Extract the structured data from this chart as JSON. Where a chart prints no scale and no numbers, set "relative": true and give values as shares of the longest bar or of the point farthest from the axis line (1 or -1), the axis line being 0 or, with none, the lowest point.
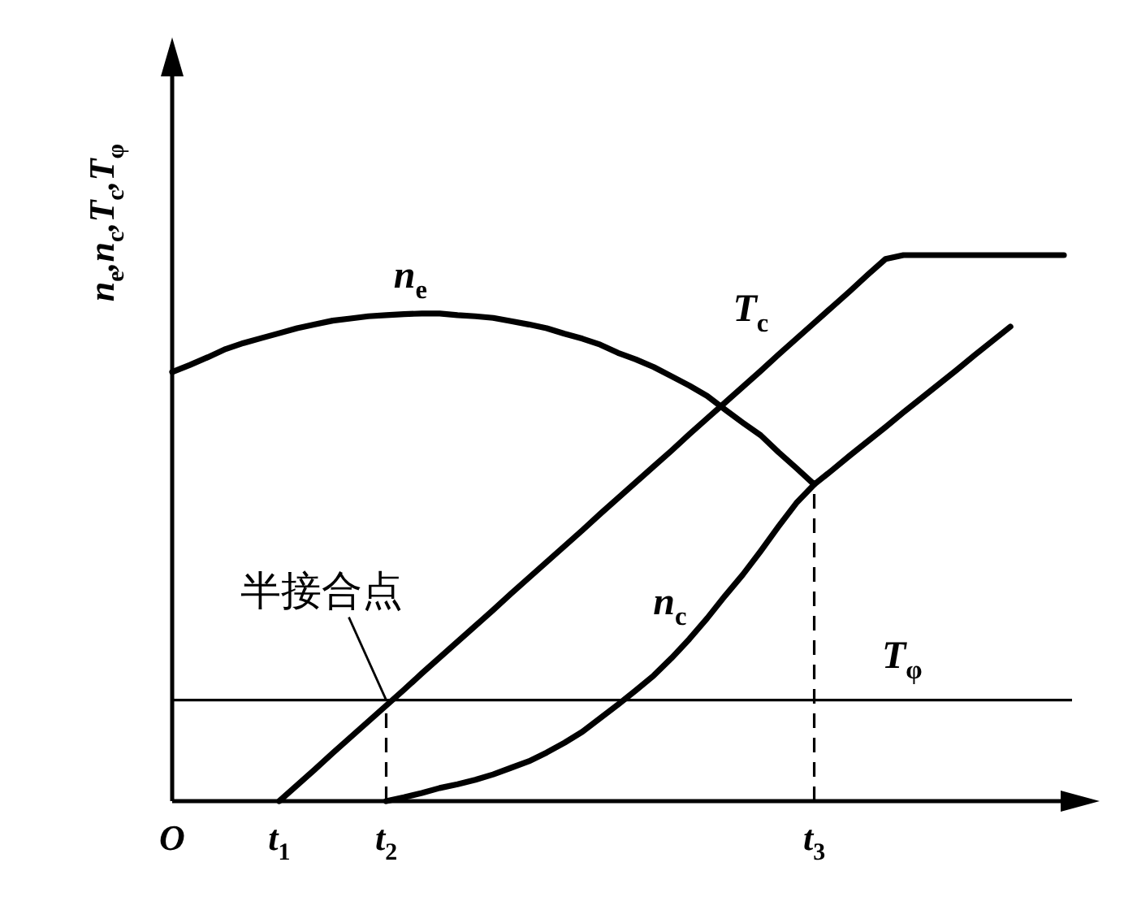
{
  "chart_data": {
    "type": "line",
    "relative": true,
    "ylabel": "n$_{e}$,n$_{c}$,T$_{c}$,T$_{φ}$",
    "categories": [
      "O",
      null,
      null,
      null,
      null,
      null,
      "t$_{1}$",
      null,
      null,
      null,
      null,
      null,
      "t$_{2}$",
      null,
      null,
      null,
      null,
      null,
      null,
      null,
      null,
      null,
      null,
      null,
      null,
      null,
      null,
      null,
      null,
      null,
      null,
      null,
      null,
      null,
      null,
      null,
      "t$_{3}$",
      null,
      null,
      null,
      null,
      null,
      null,
      null,
      null,
      null,
      null,
      null,
      null,
      null,
      null
    ],
    "series": [
      {
        "name": "n$_{e}$",
        "color": "#000000",
        "values": [
          0.786,
          0.799,
          0.813,
          0.828,
          0.839,
          0.848,
          0.857,
          0.866,
          0.873,
          0.88,
          0.884,
          0.888,
          0.89,
          0.892,
          0.893,
          0.893,
          0.89,
          0.888,
          0.885,
          0.879,
          0.873,
          0.866,
          0.856,
          0.847,
          0.836,
          0.821,
          0.809,
          0.795,
          0.778,
          0.761,
          0.742,
          0.717,
          0.693,
          0.67,
          0.639,
          0.61,
          0.58,
          0.606,
          0.633,
          0.659,
          0.685,
          0.712,
          0.738,
          0.764,
          0.79,
          0.817,
          0.843,
          0.869,
          null,
          null,
          null
        ]
      },
      {
        "name": "T$_{c}$",
        "color": "#000000",
        "values": [
          null,
          null,
          null,
          null,
          null,
          null,
          0,
          0.029,
          0.058,
          0.088,
          0.117,
          0.146,
          0.175,
          0.204,
          0.234,
          0.263,
          0.292,
          0.321,
          0.35,
          0.38,
          0.409,
          0.438,
          0.467,
          0.496,
          0.526,
          0.555,
          0.584,
          0.613,
          0.642,
          0.672,
          0.701,
          0.73,
          0.759,
          0.788,
          0.818,
          0.847,
          0.876,
          0.905,
          0.934,
          0.964,
          0.993,
          1,
          1,
          1,
          1,
          1,
          1,
          1,
          1,
          1,
          1
        ]
      },
      {
        "name": "n$_{c}$",
        "color": "#000000",
        "values": [
          null,
          null,
          null,
          null,
          null,
          null,
          null,
          null,
          null,
          null,
          null,
          null,
          0,
          0.007,
          0.015,
          0.024,
          0.031,
          0.039,
          0.049,
          0.061,
          0.073,
          0.089,
          0.107,
          0.127,
          0.152,
          0.177,
          0.203,
          0.23,
          0.262,
          0.297,
          0.335,
          0.376,
          0.415,
          0.458,
          0.503,
          0.546,
          0.58,
          null,
          null,
          null,
          null,
          null,
          null,
          null,
          null,
          null,
          null,
          null,
          null,
          null,
          null
        ]
      }
    ],
    "ref_lines": [
      {
        "axis": "y",
        "value": 0.185,
        "label": "T$_{φ}$"
      },
      {
        "axis": "x",
        "value": "t$_{2}$",
        "line_style": "dashed"
      },
      {
        "axis": "x",
        "value": "t$_{3}$",
        "line_style": "dashed"
      }
    ],
    "annotations": [
      {
        "text": "半接合点",
        "x": "t$_{2}$",
        "y": 0.185
      }
    ]
  }
}
